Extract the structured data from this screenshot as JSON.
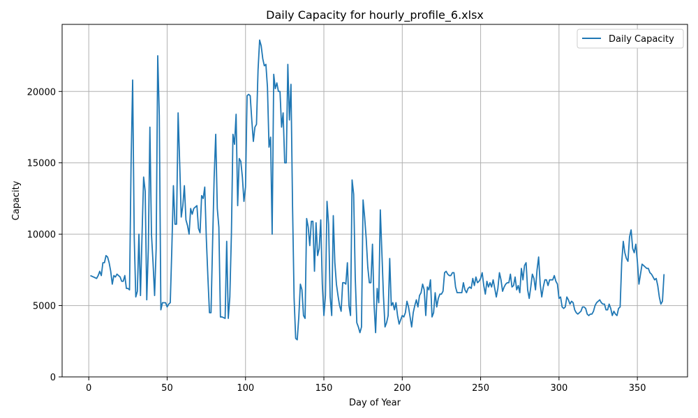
{
  "chart_data": {
    "type": "line",
    "title": "Daily Capacity for hourly_profile_6.xlsx",
    "xlabel": "Day of Year",
    "ylabel": "Capacity",
    "xlim": [
      -17,
      382
    ],
    "ylim": [
      0,
      24700
    ],
    "x_ticks": [
      0,
      50,
      100,
      150,
      200,
      250,
      300,
      350
    ],
    "y_ticks": [
      0,
      5000,
      10000,
      15000,
      20000
    ],
    "grid": true,
    "legend_position": "top-right",
    "line_color": "#1f77b4",
    "series": [
      {
        "name": "Daily Capacity",
        "x_start": 1,
        "x_step": 1,
        "values": [
          7100,
          7050,
          7000,
          6950,
          6900,
          7100,
          7400,
          7100,
          8000,
          8000,
          8500,
          8400,
          8000,
          7400,
          6500,
          7100,
          7000,
          7200,
          7100,
          7000,
          6700,
          6700,
          7100,
          6200,
          6200,
          6100,
          15000,
          20800,
          9800,
          5600,
          6000,
          10000,
          5700,
          10000,
          14000,
          13000,
          5400,
          9000,
          17500,
          10000,
          8000,
          5700,
          9000,
          22500,
          18300,
          4700,
          5200,
          5200,
          5200,
          4900,
          5100,
          5200,
          9000,
          13400,
          10700,
          10700,
          18500,
          15000,
          11200,
          12000,
          13400,
          11000,
          10600,
          10000,
          11800,
          11400,
          11800,
          11900,
          12000,
          10400,
          10100,
          12700,
          12500,
          13300,
          9700,
          7000,
          4500,
          4500,
          9400,
          14000,
          17000,
          11800,
          10500,
          4200,
          4200,
          4150,
          4100,
          9500,
          4100,
          5600,
          10000,
          17000,
          16300,
          18400,
          12000,
          15300,
          15100,
          14000,
          12300,
          13300,
          19700,
          19800,
          19700,
          18000,
          16500,
          17500,
          17700,
          21500,
          23600,
          23200,
          22300,
          21800,
          21900,
          20300,
          16100,
          16800,
          10000,
          21200,
          20200,
          20600,
          20000,
          20000,
          17500,
          18500,
          15000,
          15000,
          21900,
          18000,
          20500,
          12000,
          5500,
          2700,
          2600,
          4200,
          6500,
          6100,
          4300,
          4100,
          11100,
          10500,
          9200,
          10900,
          10900,
          7400,
          10800,
          8500,
          9000,
          11000,
          6500,
          4300,
          5700,
          12300,
          10700,
          5600,
          4300,
          11300,
          8000,
          6500,
          5700,
          5000,
          4600,
          6600,
          6600,
          6500,
          8000,
          5000,
          4300,
          13800,
          12800,
          7000,
          3800,
          3500,
          3100,
          3500,
          12400,
          11200,
          9700,
          7700,
          6600,
          6600,
          9300,
          5100,
          3100,
          6200,
          5200,
          11700,
          8700,
          5700,
          3500,
          3800,
          4300,
          8300,
          5000,
          5200,
          4700,
          5200,
          4300,
          3700,
          4000,
          4300,
          4200,
          4500,
          5300,
          4900,
          4200,
          3500,
          4500,
          5000,
          5400,
          4900,
          5700,
          5900,
          6500,
          6100,
          4300,
          6300,
          6100,
          6800,
          4200,
          4500,
          5900,
          4900,
          5500,
          5800,
          5800,
          6000,
          7300,
          7400,
          7200,
          7100,
          7100,
          7300,
          7300,
          6300,
          5900,
          5900,
          5900,
          5900,
          6600,
          6100,
          5900,
          6200,
          6300,
          6200,
          6900,
          6400,
          7000,
          6600,
          6700,
          6900,
          7300,
          6400,
          5800,
          6700,
          6300,
          6600,
          6300,
          6800,
          6200,
          5600,
          6200,
          7300,
          6800,
          6000,
          6300,
          6500,
          6600,
          6600,
          7200,
          6300,
          6400,
          7000,
          6100,
          6400,
          5900,
          7600,
          6800,
          7800,
          8000,
          6100,
          5500,
          6300,
          7200,
          6900,
          6100,
          7500,
          8400,
          6500,
          5600,
          6300,
          6800,
          6800,
          6400,
          6800,
          6800,
          6800,
          7100,
          6700,
          6500,
          5500,
          5600,
          4900,
          4800,
          4900,
          5600,
          5400,
          5100,
          5300,
          5200,
          4700,
          4500,
          4400,
          4500,
          4600,
          4900,
          4900,
          4800,
          4400,
          4300,
          4400,
          4400,
          4600,
          5000,
          5200,
          5300,
          5400,
          5200,
          5100,
          5100,
          4700,
          4700,
          5100,
          4800,
          4300,
          4600,
          4400,
          4300,
          4800,
          4900,
          8000,
          9500,
          8700,
          8300,
          8100,
          9800,
          10300,
          9000,
          8700,
          9300,
          8100,
          6500,
          7200,
          7900,
          7800,
          7700,
          7600,
          7600,
          7300,
          7200,
          7000,
          6800,
          6900,
          6400,
          5600,
          5100,
          5300,
          7200
        ]
      }
    ]
  }
}
